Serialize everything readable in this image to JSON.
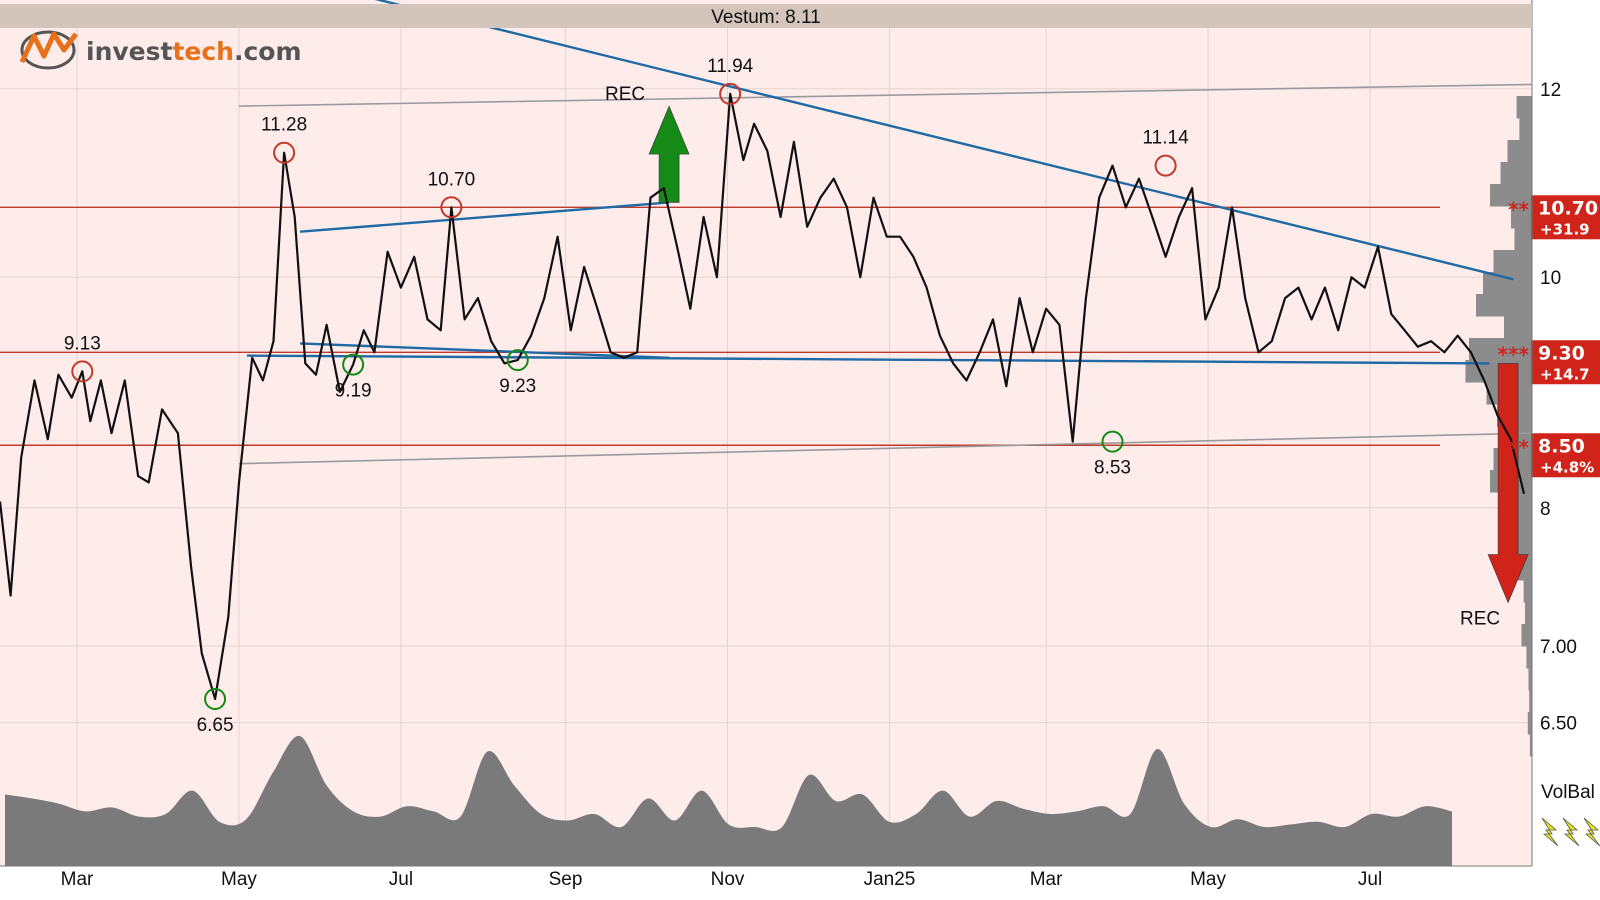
{
  "header": {
    "title": "Vestum: 8.11"
  },
  "logo": {
    "part1": "invest",
    "part2": "tech",
    "part3": ".com"
  },
  "colors": {
    "background": "#fdecea",
    "header_bar": "#d3c5bb",
    "price_line": "#111111",
    "trend_line": "#1f6aa5",
    "support_resistance": "#c0392b",
    "gray_channel": "#9a9a9a",
    "buy_arrow": "#168a16",
    "sell_arrow": "#d0241a",
    "volume": "#7a7a7a",
    "badge": "#d0241a",
    "volbal_icon": "#e6e61a"
  },
  "chart_data": {
    "type": "line",
    "title": "Vestum: 8.11",
    "y_scale": "log",
    "ylim": [
      6.33,
      13.0
    ],
    "x": [
      "2024-02-01",
      "2025-08-31"
    ],
    "x_ticks": [
      {
        "label": "Mar",
        "date": "2024-03-01"
      },
      {
        "label": "May",
        "date": "2024-05-01"
      },
      {
        "label": "Jul",
        "date": "2024-07-01"
      },
      {
        "label": "Sep",
        "date": "2024-09-01"
      },
      {
        "label": "Nov",
        "date": "2024-11-01"
      },
      {
        "label": "Jan25",
        "date": "2025-01-01"
      },
      {
        "label": "Mar",
        "date": "2025-03-01"
      },
      {
        "label": "May",
        "date": "2025-05-01"
      },
      {
        "label": "Jul",
        "date": "2025-07-01"
      }
    ],
    "y_ticks": [
      {
        "label": "12",
        "value": 12.0
      },
      {
        "label": "10",
        "value": 10.0
      },
      {
        "label": "8",
        "value": 8.0
      },
      {
        "label": "7.00",
        "value": 7.0
      },
      {
        "label": "6.50",
        "value": 6.5
      }
    ],
    "series": [
      {
        "x": [
          "2024-02-01",
          "2024-02-05",
          "2024-02-09",
          "2024-02-14",
          "2024-02-19",
          "2024-02-23",
          "2024-02-28",
          "2024-03-03",
          "2024-03-06",
          "2024-03-10",
          "2024-03-14",
          "2024-03-19",
          "2024-03-24",
          "2024-03-28",
          "2024-04-02",
          "2024-04-08",
          "2024-04-13",
          "2024-04-17",
          "2024-04-22",
          "2024-04-27",
          "2024-05-01",
          "2024-05-06",
          "2024-05-10",
          "2024-05-14",
          "2024-05-18",
          "2024-05-22",
          "2024-05-26",
          "2024-05-30",
          "2024-06-03",
          "2024-06-08",
          "2024-06-13",
          "2024-06-17",
          "2024-06-21",
          "2024-06-26",
          "2024-07-01",
          "2024-07-06",
          "2024-07-11",
          "2024-07-16",
          "2024-07-20",
          "2024-07-25",
          "2024-07-30",
          "2024-08-04",
          "2024-08-09",
          "2024-08-14",
          "2024-08-19",
          "2024-08-24",
          "2024-08-29",
          "2024-09-03",
          "2024-09-08",
          "2024-09-13",
          "2024-09-18",
          "2024-09-23",
          "2024-09-28",
          "2024-10-03",
          "2024-10-08",
          "2024-10-13",
          "2024-10-18",
          "2024-10-23",
          "2024-10-28",
          "2024-11-02",
          "2024-11-07",
          "2024-11-11",
          "2024-11-16",
          "2024-11-21",
          "2024-11-26",
          "2024-12-01",
          "2024-12-06",
          "2024-12-11",
          "2024-12-16",
          "2024-12-21",
          "2024-12-26",
          "2024-12-31",
          "2025-01-05",
          "2025-01-10",
          "2025-01-15",
          "2025-01-20",
          "2025-01-25",
          "2025-01-30",
          "2025-02-04",
          "2025-02-09",
          "2025-02-14",
          "2025-02-19",
          "2025-02-24",
          "2025-03-01",
          "2025-03-06",
          "2025-03-11",
          "2025-03-16",
          "2025-03-21",
          "2025-03-26",
          "2025-03-31",
          "2025-04-05",
          "2025-04-10",
          "2025-04-15",
          "2025-04-20",
          "2025-04-25",
          "2025-04-30",
          "2025-05-05",
          "2025-05-10",
          "2025-05-15",
          "2025-05-20",
          "2025-05-25",
          "2025-05-30",
          "2025-06-04",
          "2025-06-09",
          "2025-06-14",
          "2025-06-19",
          "2025-06-24",
          "2025-06-29",
          "2025-07-04",
          "2025-07-09",
          "2025-07-14",
          "2025-07-19",
          "2025-07-24",
          "2025-07-29",
          "2025-08-03",
          "2025-08-08",
          "2025-08-13",
          "2025-08-18",
          "2025-08-23",
          "2025-08-28"
        ],
        "y": [
          8.05,
          7.35,
          8.4,
          9.05,
          8.55,
          9.1,
          8.9,
          9.13,
          8.7,
          9.05,
          8.6,
          9.05,
          8.25,
          8.2,
          8.8,
          8.6,
          7.55,
          6.95,
          6.65,
          7.2,
          8.2,
          9.25,
          9.05,
          9.4,
          11.28,
          10.6,
          9.2,
          9.1,
          9.55,
          8.95,
          9.19,
          9.5,
          9.3,
          10.25,
          9.9,
          10.2,
          9.6,
          9.5,
          10.7,
          9.6,
          9.8,
          9.4,
          9.2,
          9.23,
          9.45,
          9.8,
          10.4,
          9.5,
          10.1,
          9.7,
          9.3,
          9.25,
          9.3,
          10.8,
          10.9,
          10.3,
          9.7,
          10.6,
          10.0,
          11.94,
          11.2,
          11.6,
          11.3,
          10.6,
          11.4,
          10.5,
          10.8,
          11.0,
          10.7,
          10.0,
          10.8,
          10.4,
          10.4,
          10.2,
          9.9,
          9.45,
          9.2,
          9.05,
          9.3,
          9.6,
          9.0,
          9.8,
          9.3,
          9.7,
          9.55,
          8.53,
          9.8,
          10.8,
          11.14,
          10.7,
          11.0,
          10.6,
          10.2,
          10.6,
          10.9,
          9.6,
          9.9,
          10.7,
          9.8,
          9.3,
          9.4,
          9.8,
          9.9,
          9.6,
          9.9,
          9.5,
          10.0,
          9.9,
          10.3,
          9.65,
          9.5,
          9.35,
          9.4,
          9.3,
          9.45,
          9.3,
          9.05,
          8.75,
          8.55,
          8.11
        ]
      }
    ],
    "extrema": [
      {
        "kind": "top",
        "date": "2024-03-03",
        "value": 9.13,
        "label": "9.13"
      },
      {
        "kind": "bottom",
        "date": "2024-04-22",
        "value": 6.65,
        "label": "6.65"
      },
      {
        "kind": "top",
        "date": "2024-05-18",
        "value": 11.28,
        "label": "11.28"
      },
      {
        "kind": "bottom",
        "date": "2024-06-13",
        "value": 9.19,
        "label": "9.19"
      },
      {
        "kind": "top",
        "date": "2024-07-20",
        "value": 10.7,
        "label": "10.70"
      },
      {
        "kind": "bottom",
        "date": "2024-08-14",
        "value": 9.23,
        "label": "9.23"
      },
      {
        "kind": "top",
        "date": "2024-11-02",
        "value": 11.94,
        "label": "11.94"
      },
      {
        "kind": "bottom",
        "date": "2025-03-26",
        "value": 8.53,
        "label": "8.53"
      },
      {
        "kind": "top",
        "date": "2025-04-15",
        "value": 11.14,
        "label": "11.14"
      }
    ],
    "levels": [
      {
        "value": 10.7,
        "label": "10.70",
        "change": "+31.9",
        "stars": "**"
      },
      {
        "value": 9.3,
        "label": "9.30",
        "change": "+14.7",
        "stars": "***"
      },
      {
        "value": 8.5,
        "label": "8.50",
        "change": "+4.8%",
        "stars": "**"
      }
    ],
    "trend_lines": [
      {
        "x1": "2024-05-24",
        "y1": 10.45,
        "x2": "2024-10-10",
        "y2": 10.75
      },
      {
        "x1": "2024-05-24",
        "y1": 9.38,
        "x2": "2024-10-10",
        "y2": 9.25
      },
      {
        "x1": "2024-05-04",
        "y1": 9.27,
        "x2": "2025-08-15",
        "y2": 9.2
      },
      {
        "x1": "2024-06-20",
        "y1": 13.1,
        "x2": "2025-08-24",
        "y2": 9.98
      }
    ],
    "gray_lines": [
      {
        "x1": "2024-05-01",
        "y1": 11.8,
        "x2": "2025-08-31",
        "y2": 12.05
      },
      {
        "x1": "2024-05-01",
        "y1": 8.35,
        "x2": "2025-08-31",
        "y2": 8.6
      }
    ],
    "signals": [
      {
        "kind": "buy",
        "label": "REC",
        "date": "2024-10-10",
        "from": 10.75,
        "to": 11.8
      },
      {
        "kind": "sell",
        "label": "REC",
        "date": "2025-08-22",
        "from": 9.2,
        "to": 7.3
      }
    ],
    "volume_profile": [
      0.22,
      0.18,
      0.35,
      0.45,
      0.6,
      0.3,
      0.25,
      0.55,
      0.7,
      0.8,
      0.4,
      0.9,
      0.95,
      0.65,
      0.5,
      0.45,
      0.55,
      0.6,
      0.4,
      0.35,
      0.3,
      0.2,
      0.12,
      0.1,
      0.15,
      0.08,
      0.05,
      0.04,
      0.06,
      0.03
    ],
    "volbal": {
      "label": "VolBal",
      "values": [
        0.55,
        0.52,
        0.48,
        0.42,
        0.45,
        0.38,
        0.4,
        0.58,
        0.34,
        0.36,
        0.72,
        1.0,
        0.62,
        0.42,
        0.38,
        0.46,
        0.42,
        0.38,
        0.88,
        0.62,
        0.4,
        0.35,
        0.4,
        0.3,
        0.52,
        0.35,
        0.58,
        0.32,
        0.3,
        0.3,
        0.7,
        0.5,
        0.55,
        0.34,
        0.4,
        0.58,
        0.38,
        0.5,
        0.44,
        0.4,
        0.42,
        0.46,
        0.4,
        0.9,
        0.48,
        0.3,
        0.36,
        0.3,
        0.32,
        0.34,
        0.3,
        0.4,
        0.38,
        0.46,
        0.42
      ]
    }
  }
}
